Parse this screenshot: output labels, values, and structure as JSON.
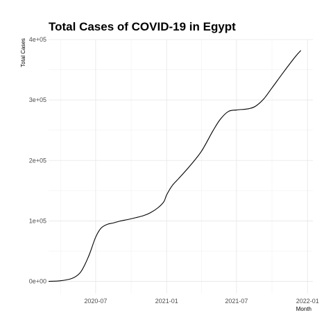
{
  "chart_data": {
    "type": "line",
    "title": "Total Cases of COVID-19 in Egypt",
    "xlabel": "Month",
    "ylabel": "Total Cases",
    "grid": true,
    "legend": "none",
    "x_axis": {
      "type": "date",
      "range": [
        "2020-03-01",
        "2022-01-15"
      ],
      "ticks": [
        {
          "date": "2020-07-01",
          "label": "2020-07"
        },
        {
          "date": "2021-01-01",
          "label": "2021-01"
        },
        {
          "date": "2021-07-01",
          "label": "2021-07"
        },
        {
          "date": "2022-01-01",
          "label": "2022-01"
        }
      ],
      "minor_ticks": [
        "2020-04-01",
        "2020-10-01",
        "2021-04-01",
        "2021-10-01"
      ]
    },
    "y_axis": {
      "range": [
        -20000,
        400000
      ],
      "ticks": [
        {
          "value": 0,
          "label": "0e+00"
        },
        {
          "value": 100000,
          "label": "1e+05"
        },
        {
          "value": 200000,
          "label": "2e+05"
        },
        {
          "value": 300000,
          "label": "3e+05"
        },
        {
          "value": 400000,
          "label": "4e+05"
        }
      ],
      "minor_ticks": [
        50000,
        150000,
        250000,
        350000
      ]
    },
    "series": [
      {
        "points": [
          [
            "2020-03-01",
            0
          ],
          [
            "2020-04-01",
            1000
          ],
          [
            "2020-05-01",
            5000
          ],
          [
            "2020-05-20",
            13000
          ],
          [
            "2020-06-01",
            25000
          ],
          [
            "2020-06-15",
            45000
          ],
          [
            "2020-07-01",
            73000
          ],
          [
            "2020-07-15",
            88000
          ],
          [
            "2020-08-01",
            94500
          ],
          [
            "2020-08-15",
            96500
          ],
          [
            "2020-09-01",
            99500
          ],
          [
            "2020-10-01",
            103500
          ],
          [
            "2020-11-01",
            108500
          ],
          [
            "2020-11-20",
            113500
          ],
          [
            "2020-12-10",
            122000
          ],
          [
            "2020-12-25",
            132000
          ],
          [
            "2021-01-01",
            143000
          ],
          [
            "2021-01-15",
            158000
          ],
          [
            "2021-02-01",
            170000
          ],
          [
            "2021-03-01",
            190000
          ],
          [
            "2021-04-01",
            215000
          ],
          [
            "2021-05-01",
            249000
          ],
          [
            "2021-05-20",
            268000
          ],
          [
            "2021-06-10",
            281000
          ],
          [
            "2021-07-01",
            283500
          ],
          [
            "2021-08-01",
            285500
          ],
          [
            "2021-08-20",
            290000
          ],
          [
            "2021-09-10",
            302000
          ],
          [
            "2021-10-01",
            320000
          ],
          [
            "2021-11-01",
            347000
          ],
          [
            "2021-12-01",
            372000
          ],
          [
            "2021-12-15",
            382000
          ]
        ]
      }
    ]
  }
}
